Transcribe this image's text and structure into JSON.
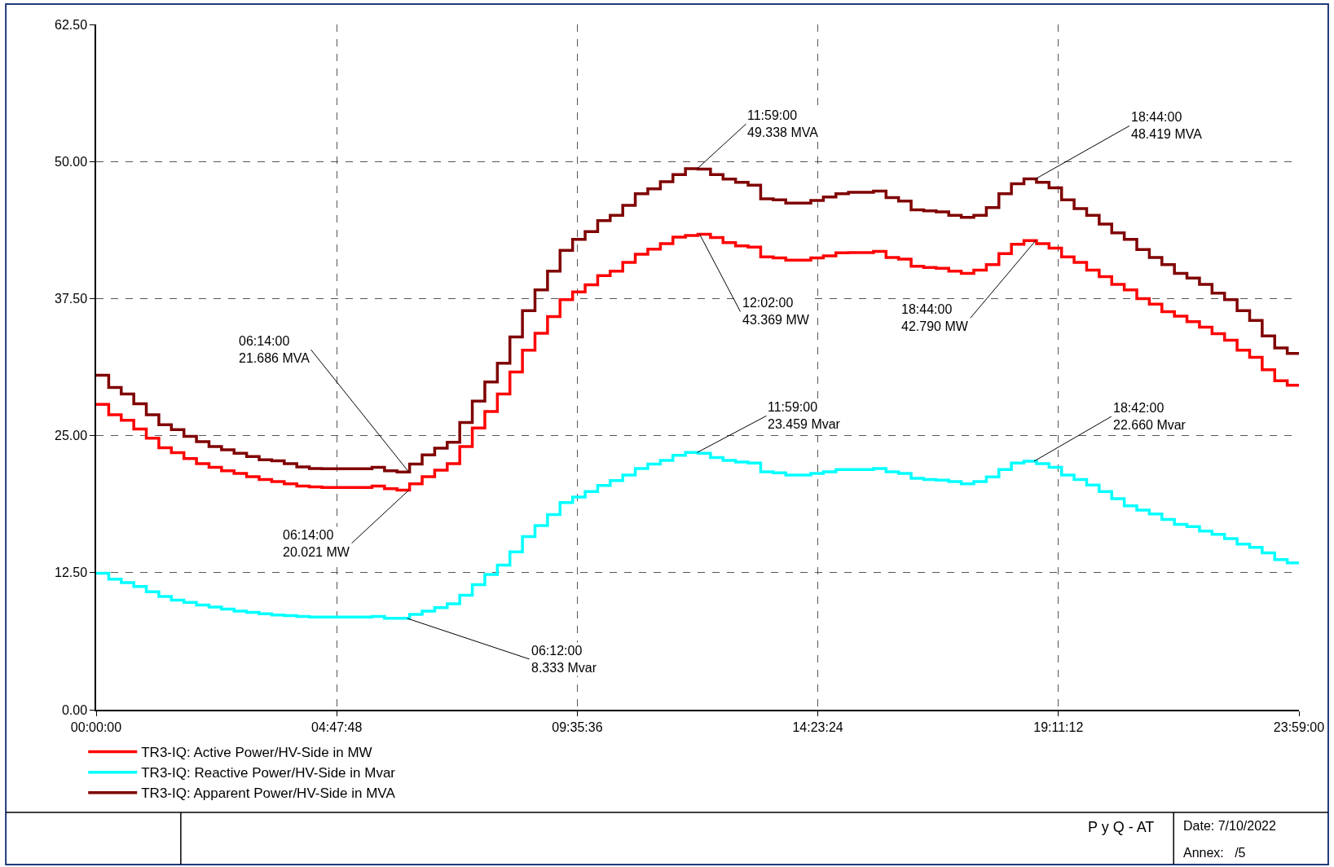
{
  "chart_data": {
    "type": "step",
    "x": [
      0,
      0.25,
      0.5,
      0.75,
      1,
      1.25,
      1.5,
      1.75,
      2,
      2.25,
      2.5,
      2.75,
      3,
      3.25,
      3.5,
      3.75,
      4,
      4.25,
      4.5,
      4.75,
      5,
      5.25,
      5.5,
      5.75,
      6,
      6.25,
      6.5,
      6.75,
      7,
      7.25,
      7.5,
      7.75,
      8,
      8.25,
      8.5,
      8.75,
      9,
      9.25,
      9.5,
      9.75,
      10,
      10.25,
      10.5,
      10.75,
      11,
      11.25,
      11.5,
      11.75,
      12,
      12.25,
      12.5,
      12.75,
      13,
      13.25,
      13.5,
      13.75,
      14,
      14.25,
      14.5,
      14.75,
      15,
      15.25,
      15.5,
      15.75,
      16,
      16.25,
      16.5,
      16.75,
      17,
      17.25,
      17.5,
      17.75,
      18,
      18.25,
      18.5,
      18.75,
      19,
      19.25,
      19.5,
      19.75,
      20,
      20.25,
      20.5,
      20.75,
      21,
      21.25,
      21.5,
      21.75,
      22,
      22.25,
      22.5,
      22.75,
      23,
      23.25,
      23.5,
      23.75,
      23.98333
    ],
    "series": [
      {
        "name": "TR3-IQ: Active Power/HV-Side in MW",
        "color": "#ff0000",
        "values": [
          27.85,
          26.9,
          26.4,
          25.6,
          24.76,
          23.9,
          23.45,
          22.9,
          22.45,
          22.1,
          21.8,
          21.55,
          21.25,
          21.0,
          20.8,
          20.6,
          20.4,
          20.33,
          20.27,
          20.27,
          20.27,
          20.27,
          20.4,
          20.15,
          20.021,
          20.6,
          21.25,
          21.85,
          22.45,
          24.0,
          25.7,
          27.2,
          28.8,
          30.8,
          32.8,
          34.33,
          35.85,
          37.4,
          38.1,
          38.75,
          39.6,
          40.0,
          40.8,
          41.55,
          42.0,
          42.5,
          43.1,
          43.25,
          43.369,
          43.06,
          42.6,
          42.3,
          42.2,
          41.3,
          41.2,
          41.0,
          41.0,
          41.2,
          41.4,
          41.67,
          41.7,
          41.7,
          41.8,
          41.24,
          41.1,
          40.45,
          40.33,
          40.27,
          40.0,
          39.8,
          40.1,
          40.6,
          41.6,
          42.45,
          42.79,
          42.5,
          42.1,
          41.3,
          40.8,
          40.1,
          39.5,
          38.8,
          38.3,
          37.5,
          37.0,
          36.3,
          35.9,
          35.4,
          34.9,
          34.3,
          33.7,
          32.8,
          32.15,
          31.0,
          30.0,
          29.6,
          29.6
        ]
      },
      {
        "name": "TR3-IQ: Reactive Power/HV-Side in Mvar",
        "color": "#00ffff",
        "values": [
          12.45,
          11.9,
          11.6,
          11.24,
          10.76,
          10.33,
          10.0,
          9.8,
          9.55,
          9.36,
          9.18,
          9.0,
          8.88,
          8.76,
          8.64,
          8.58,
          8.5,
          8.45,
          8.45,
          8.45,
          8.45,
          8.45,
          8.5,
          8.35,
          8.333,
          8.7,
          9.0,
          9.3,
          9.67,
          10.45,
          11.4,
          12.33,
          13.2,
          14.4,
          15.8,
          16.8,
          17.8,
          18.9,
          19.4,
          19.9,
          20.45,
          20.9,
          21.4,
          22.0,
          22.4,
          22.75,
          23.2,
          23.459,
          23.4,
          23.0,
          22.75,
          22.6,
          22.5,
          21.7,
          21.6,
          21.4,
          21.4,
          21.55,
          21.7,
          21.9,
          21.9,
          21.9,
          22.0,
          21.7,
          21.55,
          21.1,
          21.0,
          20.94,
          20.8,
          20.6,
          20.8,
          21.24,
          21.9,
          22.5,
          22.66,
          22.45,
          22.1,
          21.4,
          21.0,
          20.5,
          19.9,
          19.24,
          18.6,
          18.2,
          17.85,
          17.36,
          16.9,
          16.7,
          16.3,
          16.0,
          15.6,
          15.1,
          14.8,
          14.3,
          13.7,
          13.4,
          13.4
        ]
      },
      {
        "name": "TR3-IQ: Apparent Power/HV-Side in MVA",
        "color": "#800000",
        "values": [
          30.5,
          29.4,
          28.8,
          27.9,
          26.9,
          26.0,
          25.55,
          24.94,
          24.45,
          24.0,
          23.7,
          23.4,
          23.1,
          22.8,
          22.7,
          22.45,
          22.15,
          22.0,
          21.97,
          21.97,
          21.97,
          21.97,
          22.1,
          21.8,
          21.686,
          22.4,
          23.24,
          23.85,
          24.4,
          26.2,
          28.15,
          29.9,
          31.6,
          34.0,
          36.4,
          38.3,
          40.0,
          41.9,
          42.9,
          43.6,
          44.6,
          45.1,
          46.0,
          47.06,
          47.5,
          48.15,
          48.8,
          49.338,
          49.3,
          48.8,
          48.4,
          48.1,
          47.85,
          46.6,
          46.5,
          46.2,
          46.2,
          46.45,
          46.76,
          47.06,
          47.2,
          47.2,
          47.3,
          46.7,
          46.4,
          45.6,
          45.5,
          45.4,
          45.1,
          44.9,
          45.1,
          45.8,
          47.06,
          47.97,
          48.419,
          48.1,
          47.6,
          46.5,
          45.7,
          45.1,
          44.3,
          43.5,
          42.9,
          41.97,
          41.24,
          40.6,
          39.8,
          39.36,
          38.8,
          38.0,
          37.4,
          36.4,
          35.5,
          34.1,
          33.0,
          32.5,
          32.5
        ]
      }
    ],
    "xlim": [
      0,
      23.98333
    ],
    "xticks": [
      {
        "value": 0,
        "label": "00:00:00"
      },
      {
        "value": 4.79667,
        "label": "04:47:48"
      },
      {
        "value": 9.59333,
        "label": "09:35:36"
      },
      {
        "value": 14.39,
        "label": "14:23:24"
      },
      {
        "value": 19.18667,
        "label": "19:11:12"
      },
      {
        "value": 23.98333,
        "label": "23:59:00"
      }
    ],
    "ylim": [
      0,
      62.5
    ],
    "yticks": [
      {
        "value": 0,
        "label": "0.00"
      },
      {
        "value": 12.5,
        "label": "12.50"
      },
      {
        "value": 25,
        "label": "25.00"
      },
      {
        "value": 37.5,
        "label": "37.50"
      },
      {
        "value": 50,
        "label": "50.00"
      },
      {
        "value": 62.5,
        "label": "62.50"
      }
    ],
    "grid": true,
    "legend": "bottom left",
    "annotations": [
      {
        "text": "06:14:00\n21.686 MVA",
        "x": 6.23333,
        "y": 21.686
      },
      {
        "text": "06:14:00\n20.021 MW",
        "x": 6.23333,
        "y": 20.021
      },
      {
        "text": "06:12:00\n8.333 Mvar",
        "x": 6.2,
        "y": 8.333
      },
      {
        "text": "11:59:00\n49.338 MVA",
        "x": 11.98333,
        "y": 49.338
      },
      {
        "text": "12:02:00\n43.369 MW",
        "x": 12.03333,
        "y": 43.369
      },
      {
        "text": "11:59:00\n23.459 Mvar",
        "x": 11.98333,
        "y": 23.459
      },
      {
        "text": "18:44:00\n48.419 MVA",
        "x": 18.73333,
        "y": 48.419
      },
      {
        "text": "18:44:00\n42.790 MW",
        "x": 18.73333,
        "y": 42.79
      },
      {
        "text": "18:42:00\n22.660 Mvar",
        "x": 18.7,
        "y": 22.66
      },
      "P y Q - AT",
      "Date: 7/10/2022",
      "Annex:   /5"
    ]
  }
}
